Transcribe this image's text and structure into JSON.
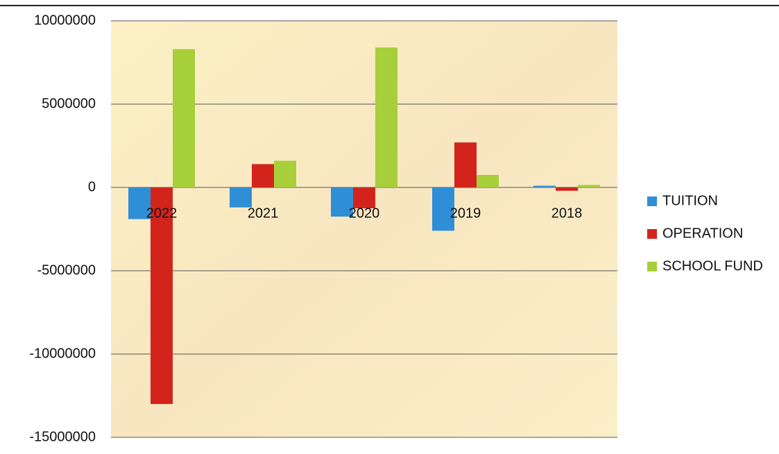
{
  "chart_data": {
    "type": "bar",
    "categories": [
      "2022",
      "2021",
      "2020",
      "2019",
      "2018"
    ],
    "series": [
      {
        "name": "TUITION",
        "color": "#2f8fd6",
        "values": [
          -1900000,
          -1200000,
          -1750000,
          -2600000,
          100000
        ]
      },
      {
        "name": "OPERATION",
        "color": "#d3241c",
        "values": [
          -13000000,
          1400000,
          -1250000,
          2700000,
          -200000
        ]
      },
      {
        "name": "SCHOOL FUND",
        "color": "#a6cf3a",
        "values": [
          8300000,
          1600000,
          8400000,
          750000,
          150000
        ]
      }
    ],
    "ylim": [
      -15000000,
      10000000
    ],
    "yticks": [
      -15000000,
      -10000000,
      -5000000,
      0,
      5000000,
      10000000
    ],
    "grid": true,
    "legend": "right"
  }
}
